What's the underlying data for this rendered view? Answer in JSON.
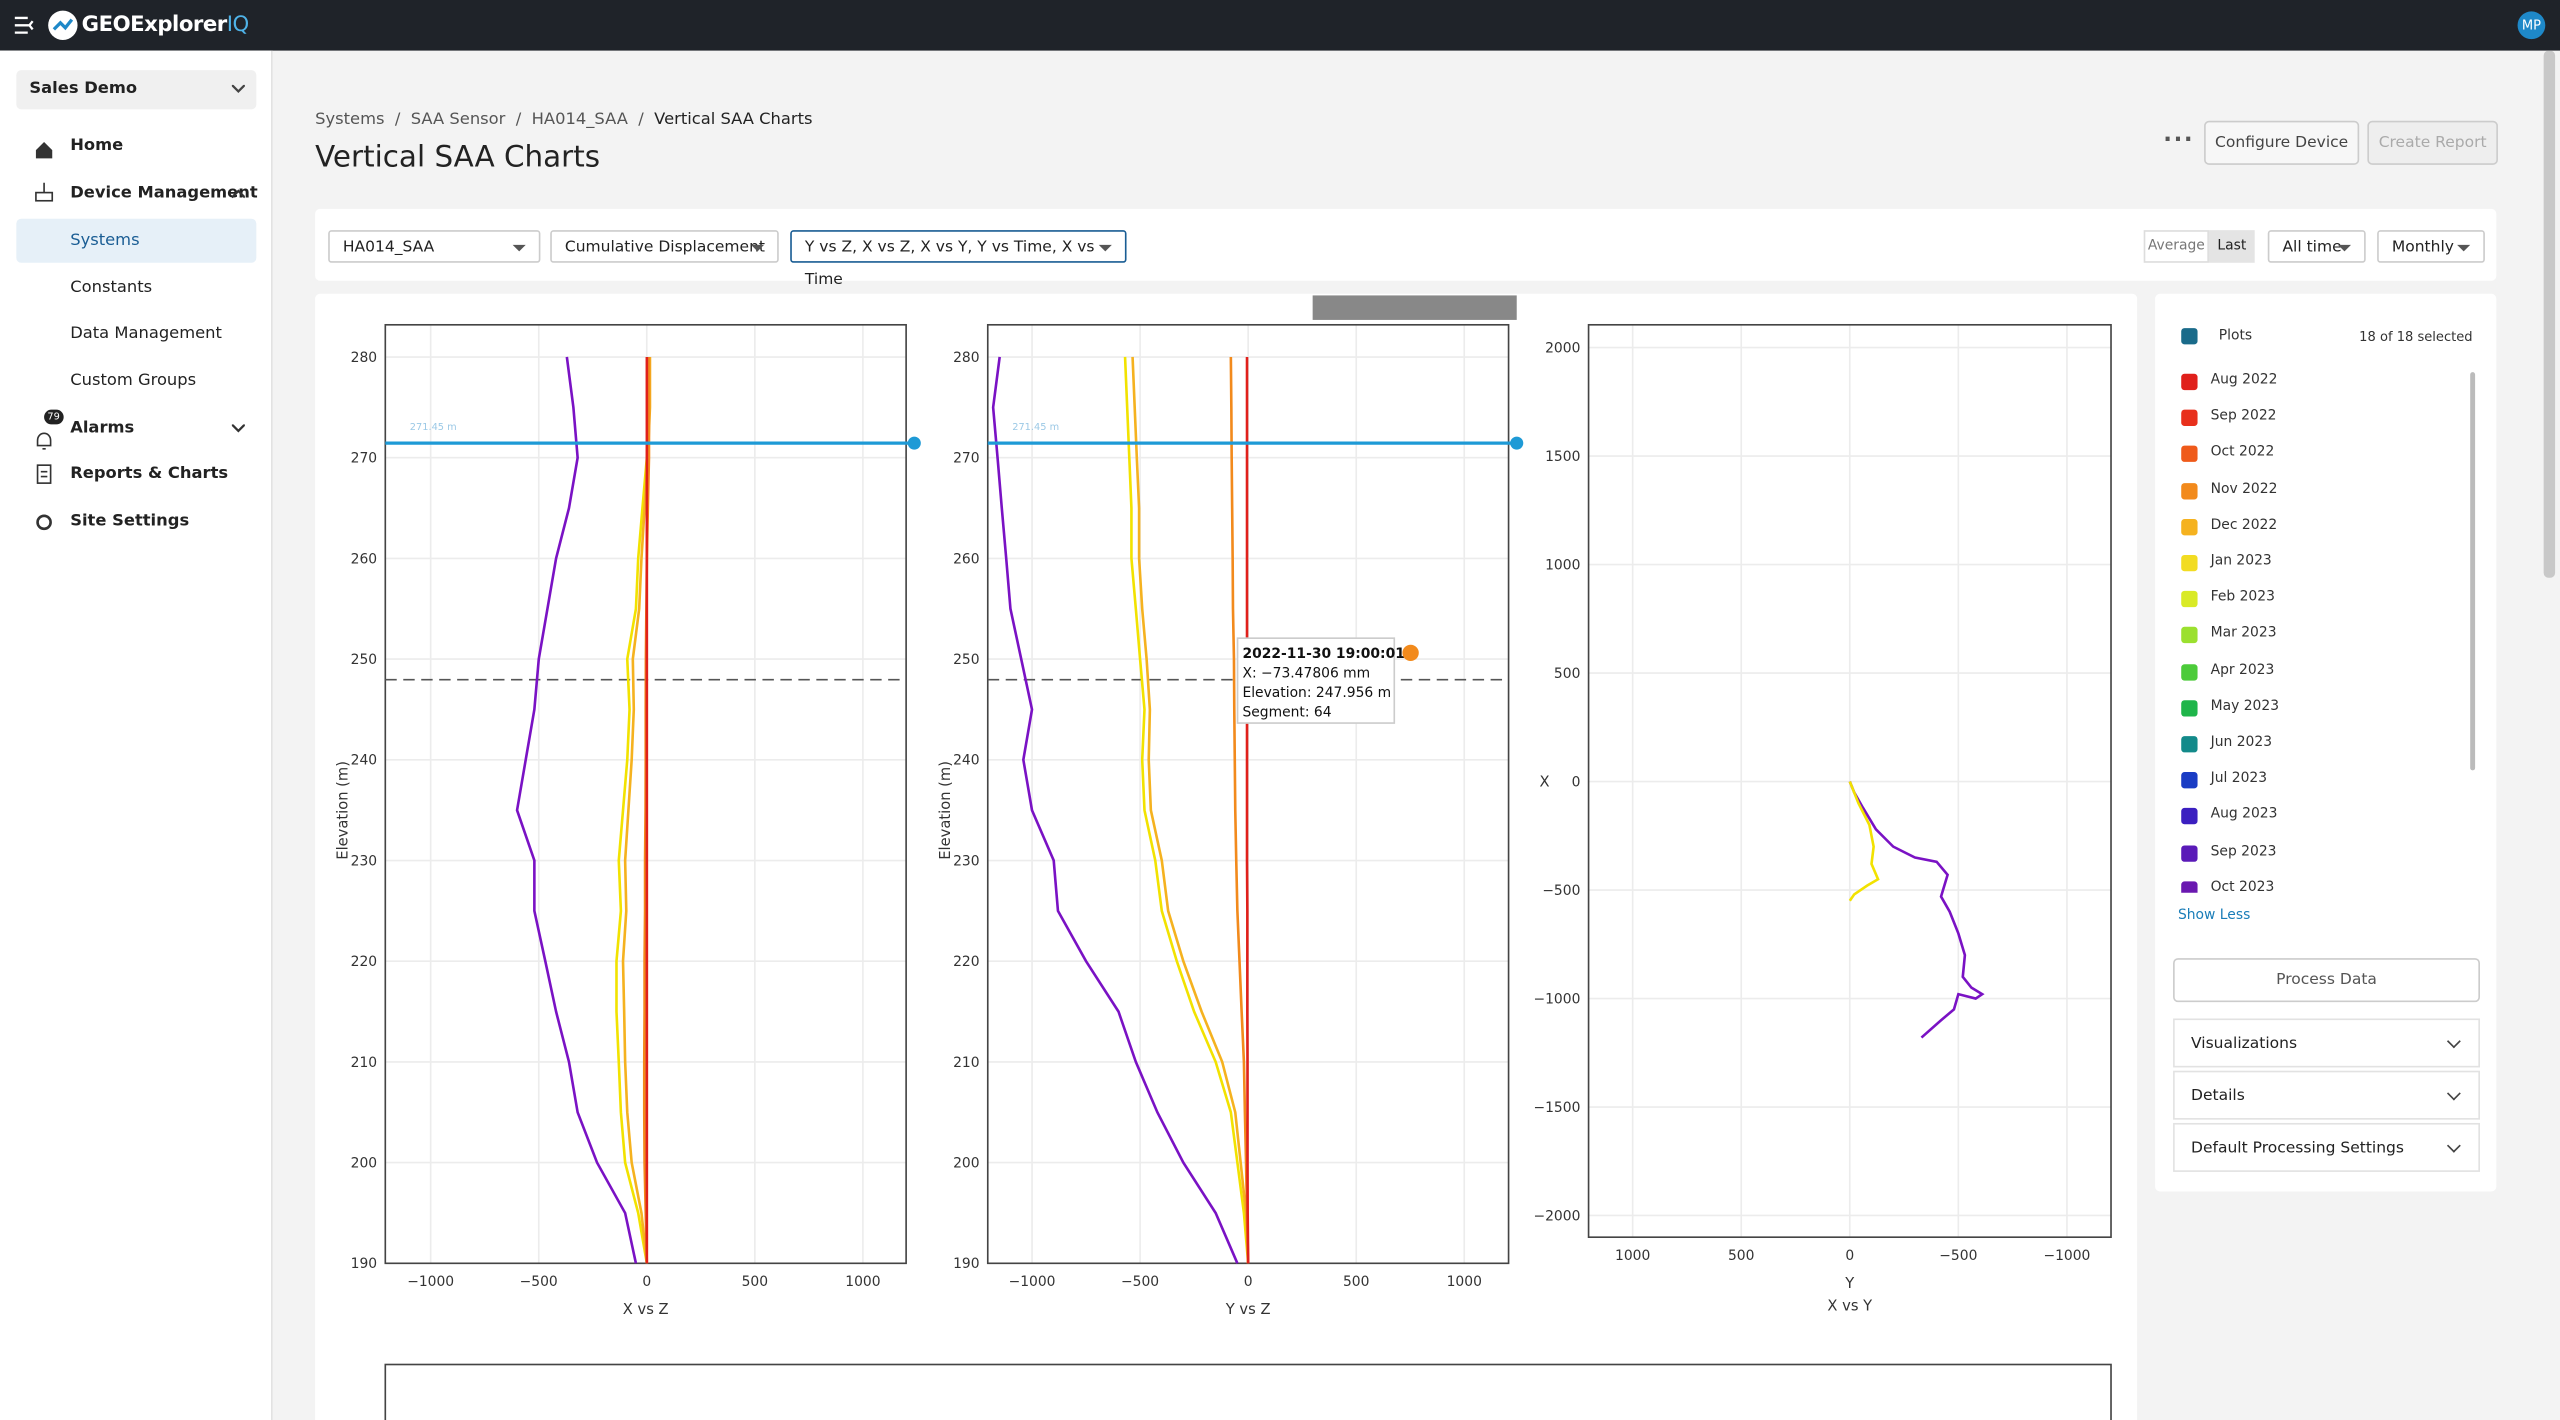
{
  "topbar": {
    "brand": "GEOExplorer",
    "brand_suffix": "IQ",
    "avatar": "MP"
  },
  "sidebar": {
    "org": "Sales Demo",
    "items": [
      "Home",
      "Device Management",
      "Systems",
      "Constants",
      "Data Management",
      "Custom Groups",
      "Alarms",
      "Reports & Charts",
      "Site Settings"
    ],
    "alarm_badge": "79"
  },
  "header": {
    "breadcrumb": [
      "Systems",
      "SAA Sensor",
      "HA014_SAA",
      "Vertical SAA Charts"
    ],
    "title": "Vertical SAA Charts",
    "buttons": [
      "Configure Device",
      "Create Report"
    ]
  },
  "filters": {
    "device": "HA014_SAA",
    "metric": "Cumulative Displacement",
    "plots": "Y vs Z, X vs Z, X vs Y, Y vs Time, X vs Time",
    "toggle": [
      "Average",
      "Last"
    ],
    "range": "All time",
    "interval": "Monthly"
  },
  "panel": {
    "plots_label": "Plots",
    "selected": "18 of 18 selected",
    "months": [
      {
        "name": "Aug 2022",
        "color": "#e0201b"
      },
      {
        "name": "Sep 2022",
        "color": "#e8301c"
      },
      {
        "name": "Oct 2022",
        "color": "#ef5a1a"
      },
      {
        "name": "Nov 2022",
        "color": "#f28a1c"
      },
      {
        "name": "Dec 2022",
        "color": "#f5b21f"
      },
      {
        "name": "Jan 2023",
        "color": "#f2dc22"
      },
      {
        "name": "Feb 2023",
        "color": "#d9ea26"
      },
      {
        "name": "Mar 2023",
        "color": "#9be02f"
      },
      {
        "name": "Apr 2023",
        "color": "#4ccb3a"
      },
      {
        "name": "May 2023",
        "color": "#1fb54a"
      },
      {
        "name": "Jun 2023",
        "color": "#138a8a"
      },
      {
        "name": "Jul 2023",
        "color": "#1a3cc4"
      },
      {
        "name": "Aug 2023",
        "color": "#3b1fc0"
      },
      {
        "name": "Sep 2023",
        "color": "#5a1ab8"
      },
      {
        "name": "Oct 2023",
        "color": "#6a18b0"
      }
    ],
    "show_less": "Show Less",
    "process": "Process Data",
    "sections": [
      "Visualizations",
      "Details",
      "Default Processing Settings"
    ]
  },
  "chart_data": [
    {
      "type": "line",
      "xlabel": "X vs Z",
      "ylabel": "Elevation (m)",
      "xlim": [
        -1210,
        1200
      ],
      "xticks": [
        {
          "value": -1000,
          "label": "−1000"
        },
        {
          "value": -500,
          "label": "−500"
        },
        0,
        500,
        1000
      ],
      "ylim": [
        190,
        283.2
      ],
      "yticks": [
        190,
        200,
        210,
        220,
        230,
        240,
        250,
        260,
        270,
        280
      ],
      "hlines": [
        {
          "value": 271.45,
          "label": "271.45 m"
        }
      ],
      "crosshair": 247.956,
      "elevation": [
        190,
        195,
        200,
        205,
        210,
        215,
        220,
        225,
        230,
        235,
        240,
        245,
        250,
        255,
        260,
        265,
        270,
        275,
        280
      ],
      "series": [
        {
          "name": "Oct 2023",
          "color": "#7a12c4",
          "values": [
            -50,
            -100,
            -230,
            -320,
            -360,
            -420,
            -470,
            -520,
            -520,
            -600,
            -560,
            -520,
            -500,
            -460,
            -420,
            -360,
            -320,
            -340,
            -370
          ]
        },
        {
          "name": "Jan 2023",
          "color": "#f2e200",
          "values": [
            0,
            -40,
            -100,
            -120,
            -130,
            -140,
            -140,
            -120,
            -130,
            -110,
            -90,
            -80,
            -90,
            -50,
            -40,
            -20,
            0,
            10,
            10
          ]
        },
        {
          "name": "Dec 2022",
          "color": "#f5b21f",
          "values": [
            0,
            -25,
            -70,
            -90,
            -100,
            -105,
            -110,
            -95,
            -100,
            -85,
            -70,
            -60,
            -65,
            -35,
            -25,
            -10,
            5,
            15,
            15
          ]
        },
        {
          "name": "Nov 2022",
          "color": "#f28a1c",
          "values": [
            0,
            -5,
            -10,
            -12,
            -12,
            -10,
            -10,
            -8,
            -8,
            -6,
            -5,
            -5,
            -4,
            -2,
            0,
            5,
            10,
            10,
            10
          ]
        },
        {
          "name": "Aug 2022",
          "color": "#e0201b",
          "values": [
            0,
            0,
            0,
            0,
            0,
            0,
            0,
            0,
            0,
            0,
            0,
            0,
            0,
            0,
            0,
            0,
            0,
            0,
            0
          ]
        }
      ]
    },
    {
      "type": "line",
      "xlabel": "Y vs Z",
      "ylabel": "Elevation (m)",
      "xlim": [
        -1205,
        1205
      ],
      "xticks": [
        {
          "value": -1000,
          "label": "−1000"
        },
        {
          "value": -500,
          "label": "−500"
        },
        0,
        500,
        1000
      ],
      "ylim": [
        190,
        283.2
      ],
      "yticks": [
        190,
        200,
        210,
        220,
        230,
        240,
        250,
        260,
        270,
        280
      ],
      "hlines": [
        {
          "value": 271.45,
          "label": "271.45 m"
        }
      ],
      "crosshair": 247.956,
      "tooltip": {
        "title": "2022-11-30 19:00:01",
        "lines": [
          "X: −73.47806 mm",
          "Elevation: 247.956 m",
          "Segment: 64"
        ]
      },
      "elevation": [
        190,
        195,
        200,
        205,
        210,
        215,
        220,
        225,
        230,
        235,
        240,
        245,
        250,
        255,
        260,
        265,
        270,
        275,
        280
      ],
      "series": [
        {
          "name": "Oct 2023",
          "color": "#7a12c4",
          "values": [
            -50,
            -150,
            -300,
            -420,
            -520,
            -600,
            -750,
            -880,
            -900,
            -1000,
            -1040,
            -1000,
            -1050,
            -1100,
            -1120,
            -1140,
            -1160,
            -1180,
            -1150
          ]
        },
        {
          "name": "Jan 2023",
          "color": "#f2e200",
          "values": [
            0,
            -20,
            -50,
            -80,
            -150,
            -250,
            -330,
            -400,
            -430,
            -480,
            -490,
            -480,
            -500,
            -520,
            -540,
            -540,
            -550,
            -560,
            -570
          ]
        },
        {
          "name": "Dec 2022",
          "color": "#f5b21f",
          "values": [
            0,
            -10,
            -35,
            -60,
            -120,
            -215,
            -300,
            -370,
            -400,
            -450,
            -460,
            -455,
            -470,
            -490,
            -505,
            -505,
            -515,
            -525,
            -535
          ]
        },
        {
          "name": "Nov 2022",
          "color": "#f28a1c",
          "values": [
            0,
            -5,
            -10,
            -15,
            -20,
            -30,
            -40,
            -50,
            -55,
            -60,
            -62,
            -64,
            -66,
            -70,
            -72,
            -74,
            -76,
            -78,
            -80
          ]
        },
        {
          "name": "Aug 2022",
          "color": "#e0201b",
          "values": [
            0,
            -2,
            -3,
            -3,
            -3,
            -4,
            -4,
            -4,
            -5,
            -5,
            -5,
            -5,
            -5,
            -5,
            -5,
            -5,
            -5,
            -5,
            -5
          ]
        }
      ]
    },
    {
      "type": "line",
      "xlabel": "Y",
      "ylabel": "X",
      "caption": "X vs Y",
      "xlim": [
        1203,
        -1203
      ],
      "xticks": [
        1000,
        500,
        0,
        {
          "value": -500,
          "label": "−500"
        },
        {
          "value": -1000,
          "label": "−1000"
        }
      ],
      "ylim": [
        -2100,
        2105
      ],
      "yticks": [
        2000,
        1500,
        1000,
        500,
        0,
        {
          "value": -500,
          "label": "−500"
        },
        {
          "value": -1000,
          "label": "−1000"
        },
        {
          "value": -1500,
          "label": "−1500"
        },
        {
          "value": -2000,
          "label": "−2000"
        }
      ],
      "series": [
        {
          "name": "Oct 2023",
          "color": "#7a12c4",
          "x": [
            0,
            -20,
            -60,
            -120,
            -200,
            -300,
            -400,
            -450,
            -420,
            -460,
            -500,
            -530,
            -520,
            -560,
            -610,
            -580,
            -500,
            -480,
            -420,
            -330
          ],
          "y": [
            0,
            -50,
            -120,
            -220,
            -300,
            -350,
            -370,
            -430,
            -530,
            -600,
            -700,
            -800,
            -900,
            -950,
            -980,
            -1000,
            -980,
            -1050,
            -1100,
            -1180
          ]
        },
        {
          "name": "Jan 2023",
          "color": "#f2e200",
          "x": [
            0,
            -40,
            -90,
            -110,
            -100,
            -130,
            -80,
            -20,
            0
          ],
          "y": [
            0,
            -100,
            -200,
            -300,
            -380,
            -450,
            -480,
            -520,
            -550
          ]
        }
      ]
    }
  ]
}
